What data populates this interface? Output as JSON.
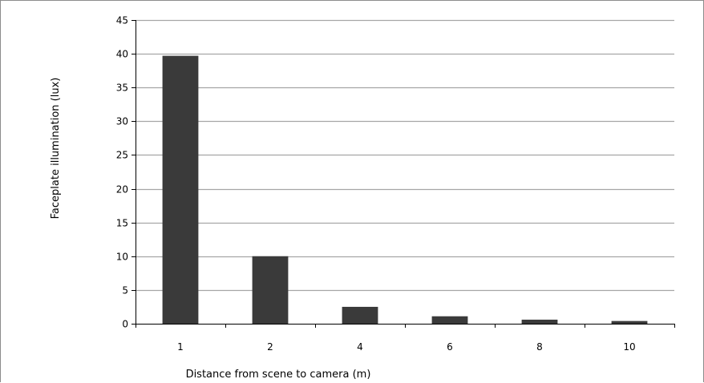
{
  "chart_data": {
    "type": "bar",
    "title": "",
    "xlabel": "Distance from scene to camera (m)",
    "ylabel": "Faceplate illumination (lux)",
    "categories": [
      "1",
      "2",
      "4",
      "6",
      "8",
      "10"
    ],
    "values": [
      39.7,
      10.0,
      2.5,
      1.1,
      0.6,
      0.4
    ],
    "ylim": [
      0,
      45
    ],
    "yticks": [
      "0",
      "5",
      "10",
      "15",
      "20",
      "25",
      "30",
      "35",
      "40",
      "45"
    ],
    "grid": true,
    "legend": "none",
    "colors": {
      "bar": "#3a3a3a",
      "grid": "#a6a6a6",
      "axis": "#000000"
    }
  }
}
